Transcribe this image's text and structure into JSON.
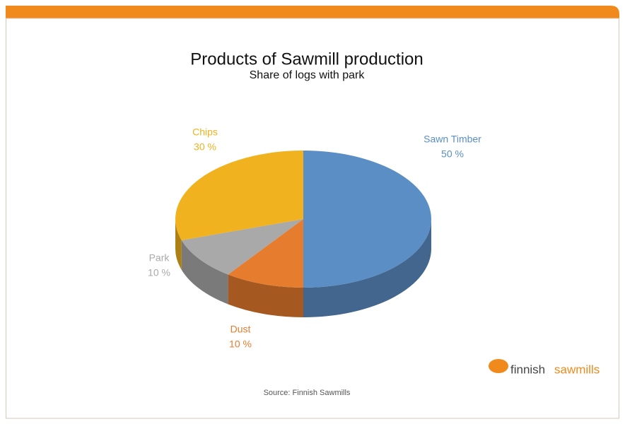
{
  "chart_data": {
    "type": "pie",
    "title": "Products of Sawmill production",
    "subtitle": "Share of logs with park",
    "categories": [
      "Sawn Timber",
      "Dust",
      "Park",
      "Chips"
    ],
    "values": [
      50,
      10,
      10,
      30
    ],
    "value_labels": [
      "50 %",
      "10 %",
      "10 %",
      "30 %"
    ],
    "colors": [
      "#5b8ec4",
      "#e57c2e",
      "#a9a9a9",
      "#f0b21e"
    ],
    "source": "Source: Finnish Sawmills"
  },
  "logo": {
    "primary": "finnish",
    "secondary": "sawmills"
  }
}
